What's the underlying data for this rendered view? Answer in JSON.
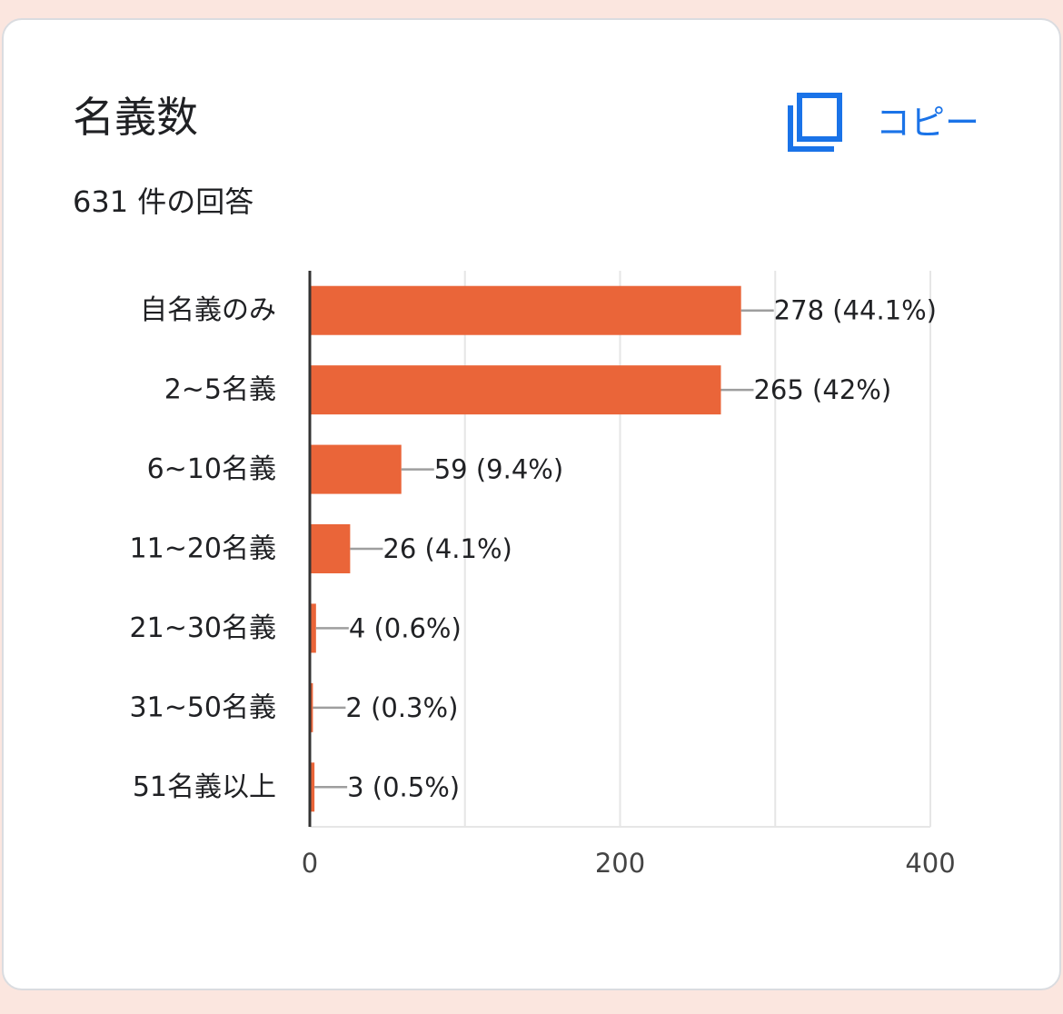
{
  "card": {
    "title": "名義数",
    "response_count": "631 件の回答",
    "copy_label": "コピー",
    "copy_icon": "copy-icon"
  },
  "colors": {
    "background": "#fbe6df",
    "bar": "#ea6539",
    "accent": "#1a73e8",
    "grid": "#e6e6e6",
    "axis": "#333333",
    "leader": "#9e9e9e"
  },
  "chart_data": {
    "type": "bar",
    "orientation": "horizontal",
    "categories": [
      "自名義のみ",
      "2~5名義",
      "6~10名義",
      "11~20名義",
      "21~30名義",
      "31~50名義",
      "51名義以上"
    ],
    "values": [
      278,
      265,
      59,
      26,
      4,
      2,
      3
    ],
    "data_labels": [
      "278 (44.1%)",
      "265 (42%)",
      "59 (9.4%)",
      "26 (4.1%)",
      "4 (0.6%)",
      "2 (0.3%)",
      "3 (0.5%)"
    ],
    "xlim": [
      0,
      400
    ],
    "x_ticks": [
      0,
      200,
      400
    ],
    "x_minor_gridlines": [
      100,
      300
    ],
    "grid": true,
    "legend": "none"
  }
}
